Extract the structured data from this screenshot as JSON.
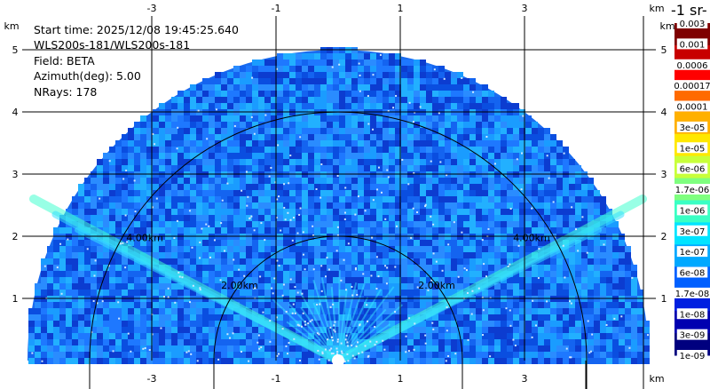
{
  "chart_data": {
    "type": "heatmap",
    "info": {
      "start_time": "Start time: 2025/12/08 19:45:25.640",
      "instrument": "WLS200s-181/WLS200s-181",
      "field": "Field: BETA",
      "azimuth": "Azimuth(deg): 5.00",
      "nrays": "NRays: 178"
    },
    "x_axis": {
      "unit": "km",
      "ticks": [
        -3,
        -1,
        1,
        3
      ],
      "tick_labels": [
        "-3",
        "-1",
        "1",
        "3"
      ],
      "range": [
        -5.2,
        5.0
      ]
    },
    "y_axis": {
      "unit": "km",
      "ticks": [
        1,
        2,
        3,
        4,
        5
      ],
      "tick_labels": [
        "1",
        "2",
        "3",
        "4",
        "5"
      ],
      "range": [
        0,
        5.95
      ]
    },
    "range_rings": [
      {
        "radius_km": 2,
        "label": "2.00km"
      },
      {
        "radius_km": 4,
        "label": "4.00km"
      }
    ],
    "max_range_km": 5.0,
    "elevation_span_deg": [
      0,
      180
    ],
    "colorbar": {
      "units_label": "-1 sr-",
      "scale": "log",
      "tick_labels": [
        "0.003",
        "0.001",
        "0.0006",
        "0.00017",
        "0.0001",
        "3e-05",
        "1e-05",
        "6e-06",
        "1.7e-06",
        "1e-06",
        "3e-07",
        "1e-07",
        "6e-08",
        "1.7e-08",
        "1e-08",
        "3e-09",
        "1e-09"
      ],
      "colors": [
        "#7f0000",
        "#c80000",
        "#ff0000",
        "#ff6a00",
        "#ffb000",
        "#ffe800",
        "#c8ff3a",
        "#7fff7f",
        "#3affc4",
        "#00e4ff",
        "#00a8ff",
        "#0060ff",
        "#0020e0",
        "#0000b0",
        "#00007f"
      ]
    },
    "features": {
      "background_level": "1e-07",
      "aerosol_layer_height_km": 2.5,
      "aerosol_layer_level": "1e-06"
    }
  }
}
